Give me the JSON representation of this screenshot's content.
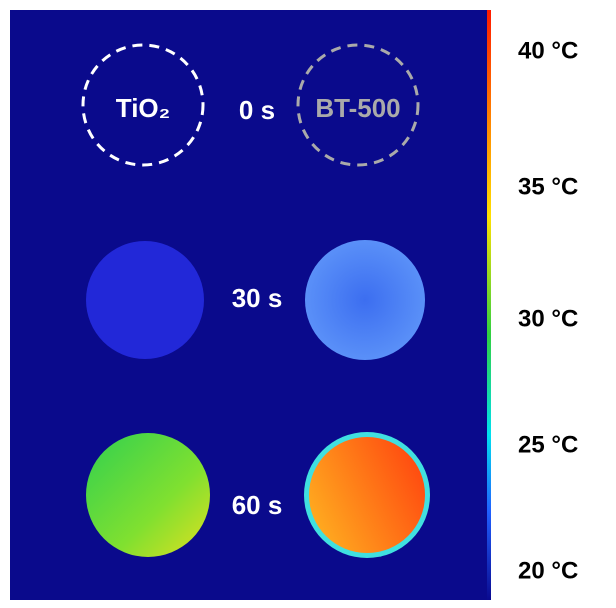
{
  "samples": [
    "TiO₂",
    "BT-500"
  ],
  "times": [
    "0 s",
    "30 s",
    "60 s"
  ],
  "colorbar": {
    "labels": [
      "40 °C",
      "35 °C",
      "30 °C",
      "25 °C",
      "20 °C"
    ]
  }
}
